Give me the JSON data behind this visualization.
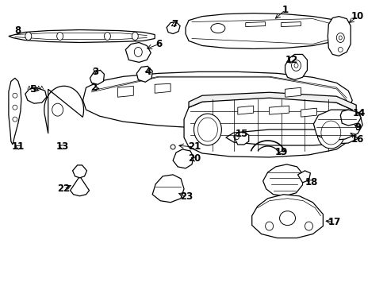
{
  "background_color": "#ffffff",
  "line_color": "#000000",
  "fig_width": 4.89,
  "fig_height": 3.6,
  "dpi": 100,
  "font_size": 8.5,
  "font_weight": "bold"
}
